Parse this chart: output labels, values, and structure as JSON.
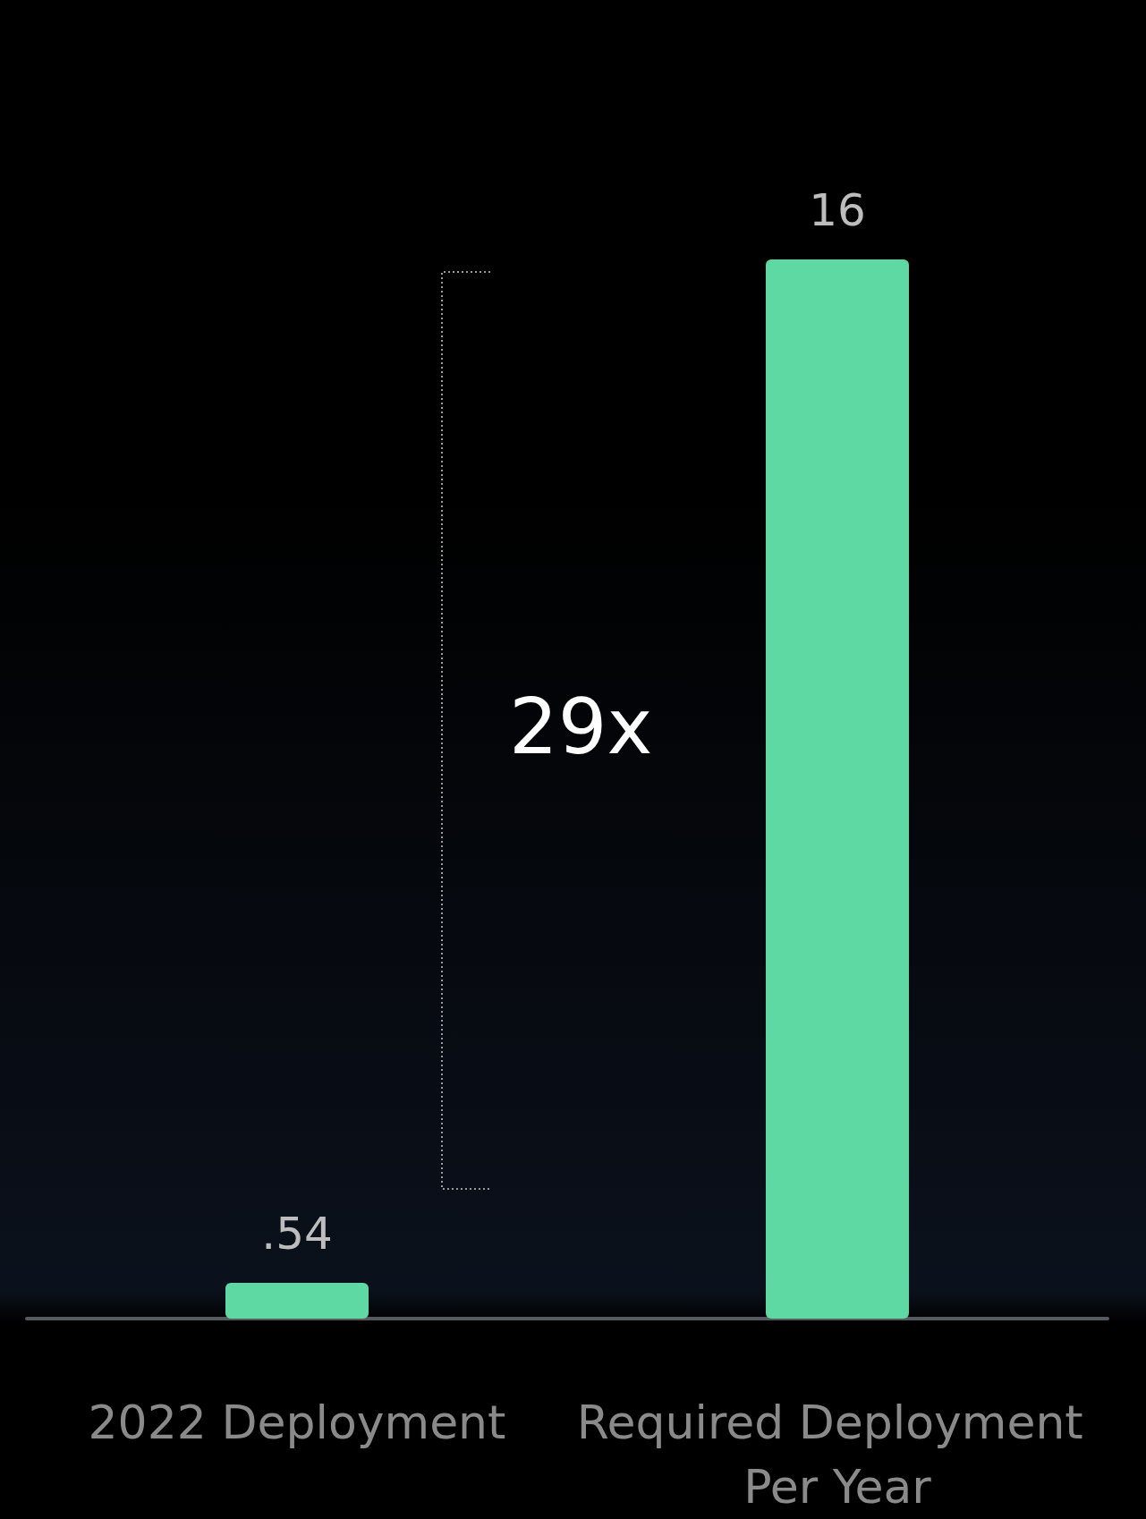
{
  "chart_data": {
    "type": "bar",
    "categories": [
      "2022 Deployment",
      "Required Deployment Per Year"
    ],
    "values": [
      0.54,
      16
    ],
    "value_labels": [
      ".54",
      "16"
    ],
    "color": "#5fd9a3",
    "annotations": [
      "29x"
    ]
  }
}
